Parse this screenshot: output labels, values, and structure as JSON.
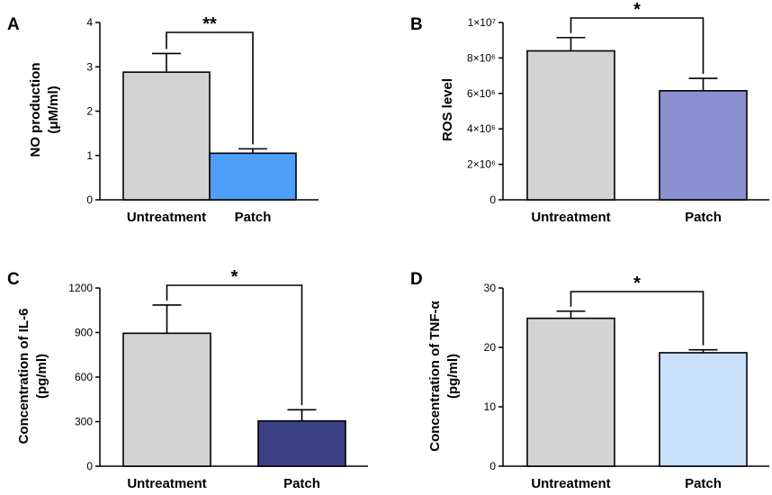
{
  "chart_data": [
    {
      "type": "bar",
      "panel": "A",
      "categories": [
        "Untreatment",
        "Patch"
      ],
      "values": [
        2.88,
        1.05
      ],
      "errors": [
        0.42,
        0.1
      ],
      "colors": [
        "#d3d3d3",
        "#4d9ff8"
      ],
      "ylabel_lines": [
        "NO production",
        "(μM/ml)"
      ],
      "ylim": [
        0,
        4
      ],
      "yticks": [
        0,
        1,
        2,
        3,
        4
      ],
      "ytick_labels": [
        "0",
        "1",
        "2",
        "3",
        "4"
      ],
      "significance": "**"
    },
    {
      "type": "bar",
      "panel": "B",
      "categories": [
        "Untreatment",
        "Patch"
      ],
      "values": [
        8400000,
        6150000
      ],
      "errors": [
        750000,
        700000
      ],
      "colors": [
        "#d3d3d3",
        "#8a8fd0"
      ],
      "ylabel_lines": [
        "ROS level"
      ],
      "ylim": [
        0,
        10000000
      ],
      "yticks": [
        0,
        2000000,
        4000000,
        6000000,
        8000000,
        10000000
      ],
      "ytick_labels": [
        "0",
        "2×10⁶",
        "4×10⁶",
        "6×10⁶",
        "8×10⁶",
        "1×10⁷"
      ],
      "significance": "*"
    },
    {
      "type": "bar",
      "panel": "C",
      "categories": [
        "Untreatment",
        "Patch"
      ],
      "values": [
        895,
        305
      ],
      "errors": [
        190,
        75
      ],
      "colors": [
        "#d3d3d3",
        "#3c4185"
      ],
      "ylabel_lines": [
        "Concentration of IL-6",
        "(pg/ml)"
      ],
      "ylim": [
        0,
        1200
      ],
      "yticks": [
        0,
        300,
        600,
        900,
        1200
      ],
      "ytick_labels": [
        "0",
        "300",
        "600",
        "900",
        "1200"
      ],
      "significance": "*"
    },
    {
      "type": "bar",
      "panel": "D",
      "categories": [
        "Untreatment",
        "Patch"
      ],
      "values": [
        24.9,
        19.1
      ],
      "errors": [
        1.2,
        0.5
      ],
      "colors": [
        "#d3d3d3",
        "#c9dffa"
      ],
      "ylabel_lines": [
        "Concentration of TNF-α",
        "(pg/ml)"
      ],
      "ylim": [
        0,
        30
      ],
      "yticks": [
        0,
        10,
        20,
        30
      ],
      "ytick_labels": [
        "0",
        "10",
        "20",
        "30"
      ],
      "significance": "*"
    }
  ]
}
